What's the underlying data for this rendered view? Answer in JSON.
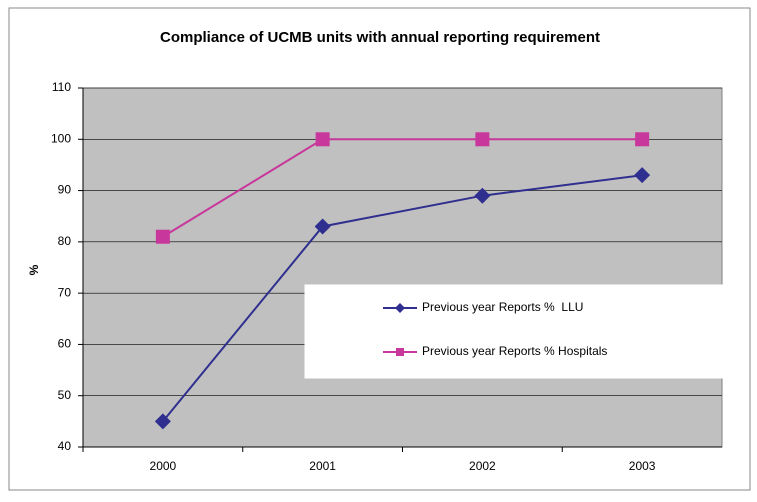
{
  "chart_data": {
    "type": "line",
    "title": "Compliance of UCMB units with annual reporting requirement",
    "y_label": "%",
    "categories": [
      "2000",
      "2001",
      "2002",
      "2003"
    ],
    "series": [
      {
        "name": "Previous year Reports %  LLU",
        "color": "#2f2f8f",
        "marker": "diamond",
        "values": [
          45,
          83,
          89,
          93
        ]
      },
      {
        "name": "Previous year Reports % Hospitals",
        "color": "#c8379b",
        "marker": "square",
        "values": [
          81,
          100,
          100,
          100
        ]
      }
    ],
    "ylim": [
      40,
      110
    ],
    "yticks": [
      40,
      50,
      60,
      70,
      80,
      90,
      100,
      110
    ],
    "grid": true,
    "legend": "right"
  }
}
